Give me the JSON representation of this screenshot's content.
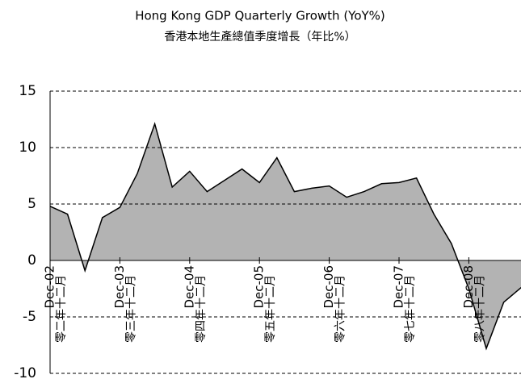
{
  "chart_data": {
    "type": "area",
    "title": "Hong Kong GDP Quarterly Growth (YoY%)",
    "subtitle": "香港本地生產總值季度增長（年比%）",
    "categories": [
      "Dec-02",
      null,
      null,
      null,
      "Dec-03",
      null,
      null,
      null,
      "Dec-04",
      null,
      null,
      null,
      "Dec-05",
      null,
      null,
      null,
      "Dec-06",
      null,
      null,
      null,
      "Dec-07",
      null,
      null,
      null,
      "Dec-08",
      null,
      null,
      null
    ],
    "categories_zh": [
      "零二年十二月",
      null,
      null,
      null,
      "零三年十二月",
      null,
      null,
      null,
      "零四年十二月",
      null,
      null,
      null,
      "零五年十二月",
      null,
      null,
      null,
      "零六年十二月",
      null,
      null,
      null,
      "零七年十二月",
      null,
      null,
      null,
      "零八年十二月",
      null,
      null,
      null
    ],
    "values": [
      4.8,
      4.1,
      -0.9,
      3.8,
      4.7,
      7.7,
      12.1,
      6.5,
      7.9,
      6.1,
      7.1,
      8.1,
      6.9,
      9.1,
      6.1,
      6.4,
      6.6,
      5.6,
      6.1,
      6.8,
      6.9,
      7.3,
      4.1,
      1.5,
      -2.5,
      -7.8,
      -3.7,
      -2.4
    ],
    "color": "#b3b3b3",
    "ylim": [
      -10,
      15
    ],
    "yticks": [
      -10,
      -5,
      0,
      5,
      10,
      15
    ],
    "grid": true
  }
}
